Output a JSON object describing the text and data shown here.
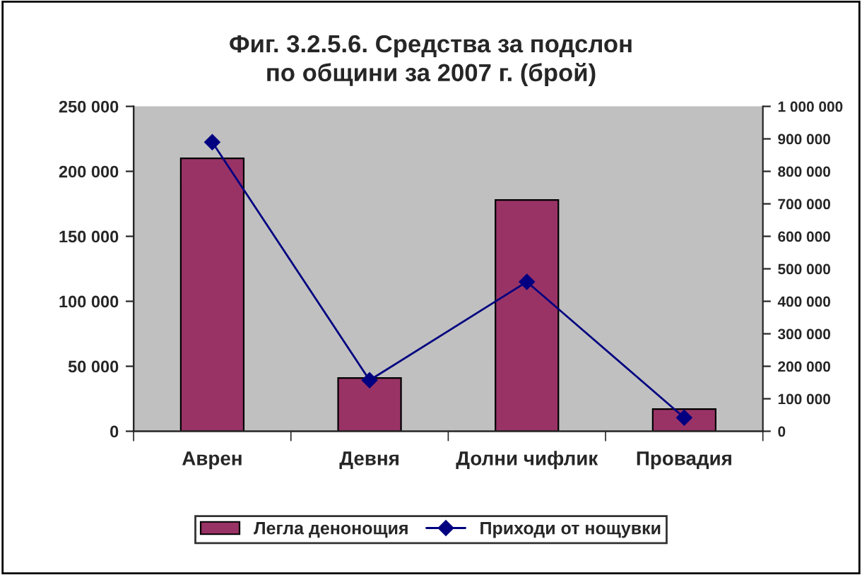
{
  "chart_data": {
    "type": "bar",
    "title": "Фиг. 3.2.5.6. Средства за подслон\nпо общини за 2007 г. (брой)",
    "categories": [
      "Аврен",
      "Девня",
      "Долни чифлик",
      "Провадия"
    ],
    "series": [
      {
        "name": "Легла денонощия",
        "color": "#993366",
        "values": [
          210000,
          41000,
          178000,
          17000
        ]
      },
      {
        "name": "Приходи от нощувки",
        "type": "line",
        "axis": "y2",
        "color": "#000080",
        "marker": "diamond",
        "values": [
          890000,
          157000,
          460000,
          42000
        ]
      }
    ],
    "ylim": [
      0,
      250000
    ],
    "yticks": [
      {
        "value": 0,
        "label": "0"
      },
      {
        "value": 50000,
        "label": "50 000"
      },
      {
        "value": 100000,
        "label": "100 000"
      },
      {
        "value": 150000,
        "label": "150 000"
      },
      {
        "value": 200000,
        "label": "200 000"
      },
      {
        "value": 250000,
        "label": "250 000"
      }
    ],
    "y2lim": [
      0,
      1000000
    ],
    "y2ticks": [
      {
        "value": 0,
        "label": "0"
      },
      {
        "value": 100000,
        "label": "100 000"
      },
      {
        "value": 200000,
        "label": "200 000"
      },
      {
        "value": 300000,
        "label": "300 000"
      },
      {
        "value": 400000,
        "label": "400 000"
      },
      {
        "value": 500000,
        "label": "500 000"
      },
      {
        "value": 600000,
        "label": "600 000"
      },
      {
        "value": 700000,
        "label": "700 000"
      },
      {
        "value": 800000,
        "label": "800 000"
      },
      {
        "value": 900000,
        "label": "900 000"
      },
      {
        "value": 1000000,
        "label": "1 000 000"
      }
    ],
    "grid": false,
    "legend": "bottom"
  }
}
